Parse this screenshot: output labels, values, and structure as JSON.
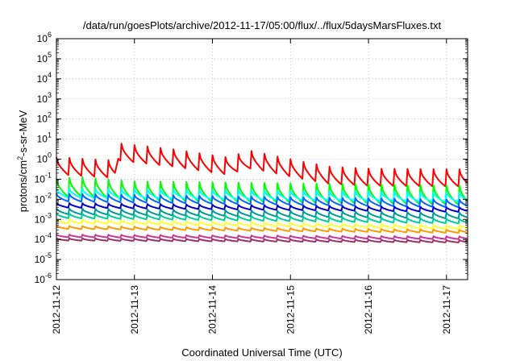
{
  "chart_data": {
    "type": "line",
    "title": "/data/run/goesPlots/archive/2012-11-17/05:00/flux/../flux/5daysMarsFluxes.txt",
    "xlabel": "Coordinated Universal Time (UTC)",
    "ylabel_parts": [
      "protons/cm",
      "2",
      "-s-sr-MeV"
    ],
    "x_ticks": [
      "2012-11-12",
      "2012-11-13",
      "2012-11-14",
      "2012-11-15",
      "2012-11-16",
      "2012-11-17"
    ],
    "x_start": "2012-11-12",
    "x_end": "2012-11-17T06:30",
    "y_scale": "log",
    "y_ticks_exp": [
      "-6",
      "-5",
      "-4",
      "-3",
      "-2",
      "-1",
      "0",
      "1",
      "2",
      "3",
      "4",
      "5",
      "6"
    ],
    "ylim": [
      1e-06,
      1000000.0
    ],
    "grid": true,
    "sawtooth_period_hours": 4,
    "series": [
      {
        "color": "#ff0000",
        "drop": 0.45,
        "key_x": [
          "2012-11-12",
          "2012-11-12T18:00",
          "2012-11-12T19:00",
          "2012-11-13T12:00",
          "2012-11-14T04:00",
          "2012-11-14T12:00",
          "2012-11-15T00:00",
          "2012-11-15T12:00",
          "2012-11-16T00:00",
          "2012-11-17T06:30"
        ],
        "key_y": [
          0.45,
          0.3,
          2.2,
          1.1,
          0.45,
          0.9,
          0.35,
          0.15,
          0.12,
          0.11
        ]
      },
      {
        "color": "#00ff00",
        "drop": 0.5,
        "key_x": [
          "2012-11-12",
          "2012-11-12T08:00",
          "2012-11-13",
          "2012-11-15",
          "2012-11-17T06:30"
        ],
        "key_y": [
          0.035,
          0.04,
          0.025,
          0.02,
          0.015
        ]
      },
      {
        "color": "#00ffff",
        "drop": 0.25,
        "key_x": [
          "2012-11-12",
          "2012-11-17T06:30"
        ],
        "key_y": [
          0.02,
          0.012
        ]
      },
      {
        "color": "#0066ff",
        "drop": 0.2,
        "key_x": [
          "2012-11-12",
          "2012-11-17T06:30"
        ],
        "key_y": [
          0.012,
          0.006
        ]
      },
      {
        "color": "#0000cc",
        "drop": 0.12,
        "key_x": [
          "2012-11-12",
          "2012-11-17T06:30"
        ],
        "key_y": [
          0.005,
          0.003
        ]
      },
      {
        "color": "#009999",
        "drop": 0.15,
        "key_x": [
          "2012-11-12",
          "2012-11-17T06:30"
        ],
        "key_y": [
          0.0025,
          0.0015
        ]
      },
      {
        "color": "#00cc99",
        "drop": 0.12,
        "key_x": [
          "2012-11-12",
          "2012-11-17T06:30"
        ],
        "key_y": [
          0.0015,
          0.0008
        ]
      },
      {
        "color": "#ffff33",
        "drop": 0.1,
        "key_x": [
          "2012-11-12",
          "2012-11-17T06:30"
        ],
        "key_y": [
          0.0008,
          0.0004
        ]
      },
      {
        "color": "#ff9900",
        "drop": 0.08,
        "key_x": [
          "2012-11-12",
          "2012-11-17T06:30"
        ],
        "key_y": [
          0.0004,
          0.00025
        ]
      },
      {
        "color": "#cc3399",
        "drop": 0.07,
        "key_x": [
          "2012-11-12",
          "2012-11-17T06:30"
        ],
        "key_y": [
          0.00015,
          0.00012
        ]
      },
      {
        "color": "#993366",
        "drop": 0.06,
        "key_x": [
          "2012-11-12",
          "2012-11-17T06:30"
        ],
        "key_y": [
          0.0001,
          8e-05
        ]
      }
    ]
  }
}
